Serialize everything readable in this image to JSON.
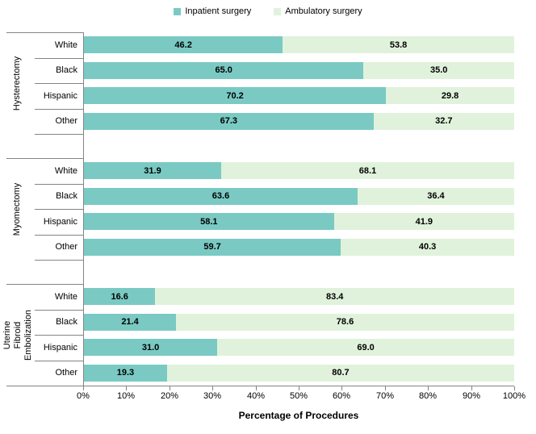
{
  "colors": {
    "inpatient": "#7ACAC3",
    "ambulatory": "#E0F2DB",
    "axis_line": "#848484",
    "text": "#000000",
    "background": "#FFFFFF"
  },
  "chart_data": {
    "type": "bar",
    "orientation": "horizontal",
    "stacked": true,
    "title": "",
    "xlabel": "Percentage of Procedures",
    "ylabel": "",
    "x_axis": {
      "min": 0,
      "max": 100,
      "tick_labels": [
        "0%",
        "10%",
        "20%",
        "30%",
        "40%",
        "50%",
        "60%",
        "70%",
        "80%",
        "90%",
        "100%"
      ]
    },
    "legend": {
      "position": "top",
      "entries": [
        {
          "name": "Inpatient surgery",
          "color": "#7ACAC3"
        },
        {
          "name": "Ambulatory surgery",
          "color": "#E0F2DB"
        }
      ]
    },
    "groups": [
      {
        "label": "Hysterectomy",
        "rows": [
          {
            "category": "White",
            "inpatient": 46.2,
            "ambulatory": 53.8
          },
          {
            "category": "Black",
            "inpatient": 65.0,
            "ambulatory": 35.0
          },
          {
            "category": "Hispanic",
            "inpatient": 70.2,
            "ambulatory": 29.8
          },
          {
            "category": "Other",
            "inpatient": 67.3,
            "ambulatory": 32.7
          }
        ]
      },
      {
        "label": "Myomectomy",
        "rows": [
          {
            "category": "White",
            "inpatient": 31.9,
            "ambulatory": 68.1
          },
          {
            "category": "Black",
            "inpatient": 63.6,
            "ambulatory": 36.4
          },
          {
            "category": "Hispanic",
            "inpatient": 58.1,
            "ambulatory": 41.9
          },
          {
            "category": "Other",
            "inpatient": 59.7,
            "ambulatory": 40.3
          }
        ]
      },
      {
        "label": "Uterine Fibroid\nEmbolization",
        "rows": [
          {
            "category": "White",
            "inpatient": 16.6,
            "ambulatory": 83.4
          },
          {
            "category": "Black",
            "inpatient": 21.4,
            "ambulatory": 78.6
          },
          {
            "category": "Hispanic",
            "inpatient": 31.0,
            "ambulatory": 69.0
          },
          {
            "category": "Other",
            "inpatient": 19.3,
            "ambulatory": 80.7
          }
        ]
      }
    ]
  }
}
